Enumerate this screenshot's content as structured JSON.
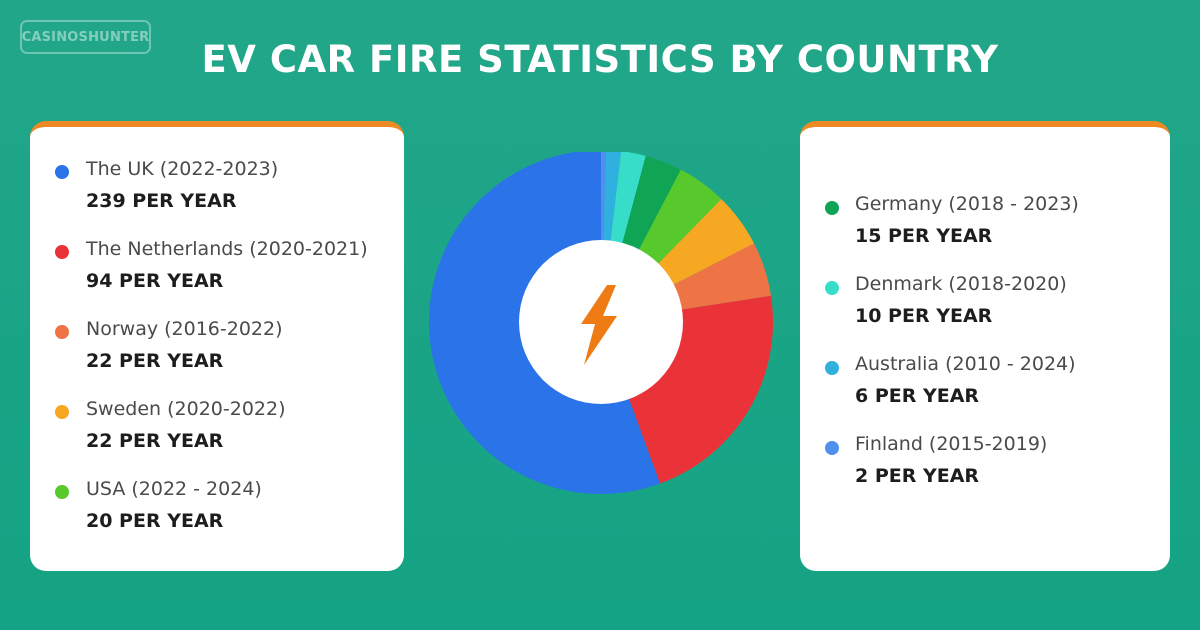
{
  "logo_text": "CASINOSHUNTER",
  "title": "EV CAR FIRE STATISTICS BY COUNTRY",
  "chart_data": {
    "type": "pie",
    "categories": [
      "The UK (2022-2023)",
      "The Netherlands (2020-2021)",
      "Norway (2016-2022)",
      "Sweden (2020-2022)",
      "USA (2022 - 2024)",
      "Germany (2018 - 2023)",
      "Denmark (2018-2020)",
      "Australia (2010 - 2024)",
      "Finland (2015-2019)"
    ],
    "values": [
      239,
      94,
      22,
      22,
      20,
      15,
      10,
      6,
      2
    ],
    "unit": "PER YEAR",
    "colors": [
      "#2b73e8",
      "#ea3338",
      "#ee7446",
      "#f7a823",
      "#57c92c",
      "#0fa554",
      "#38ddc9",
      "#30b0df",
      "#4f90ec"
    ]
  },
  "legend_left": [
    {
      "label": "The UK (2022-2023)",
      "value": "239 PER YEAR",
      "color": "#2b73e8"
    },
    {
      "label": "The Netherlands (2020-2021)",
      "value": "94 PER YEAR",
      "color": "#ea3338"
    },
    {
      "label": "Norway (2016-2022)",
      "value": "22 PER YEAR",
      "color": "#ee7446"
    },
    {
      "label": "Sweden (2020-2022)",
      "value": "22 PER YEAR",
      "color": "#f7a823"
    },
    {
      "label": "USA (2022 - 2024)",
      "value": "20 PER YEAR",
      "color": "#57c92c"
    }
  ],
  "legend_right": [
    {
      "label": "Germany (2018 - 2023)",
      "value": "15 PER YEAR",
      "color": "#0fa554"
    },
    {
      "label": "Denmark (2018-2020)",
      "value": "10 PER YEAR",
      "color": "#38ddc9"
    },
    {
      "label": "Australia (2010 - 2024)",
      "value": "6 PER YEAR",
      "color": "#30b0df"
    },
    {
      "label": "Finland (2015-2019)",
      "value": "2 PER YEAR",
      "color": "#4f90ec"
    }
  ],
  "center_icon": "lightning-bolt-icon"
}
